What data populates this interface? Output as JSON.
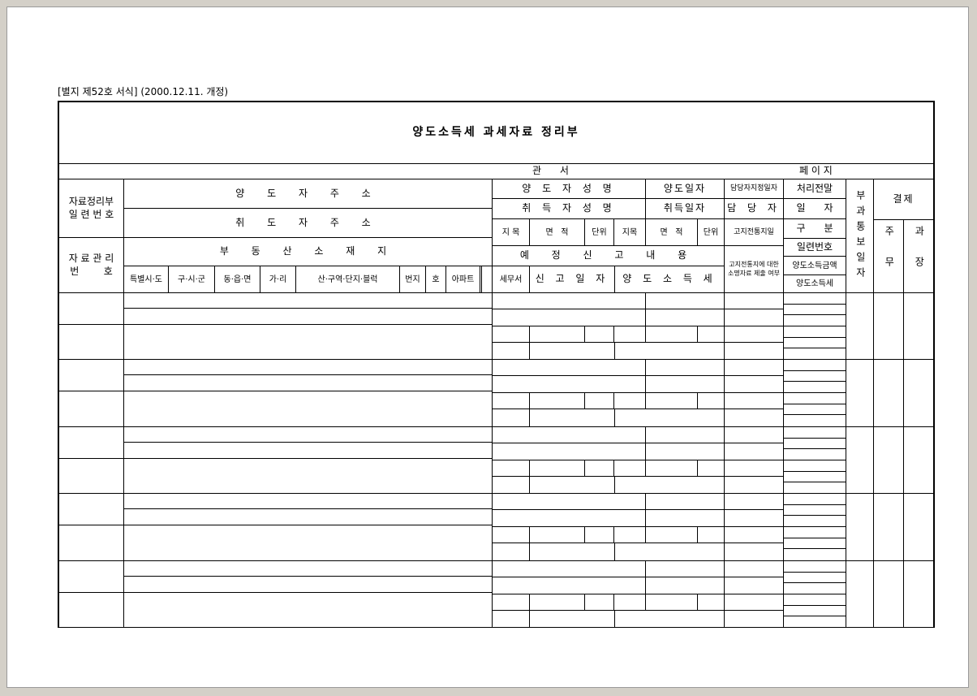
{
  "form_number": "[별지 제52호 서식] (2000.12.11. 개정)",
  "title": "양도소득세 과세자료 정리부",
  "office_row": {
    "office_label": "관      서",
    "page_label": "페 이 지"
  },
  "header": {
    "serial_label": "자료정리부\n일 련 번 호",
    "mgmt_label": "자 료 관 리\n번        호",
    "addr_transferor": "양 도 자 주 소",
    "addr_acquirer": "취 도 자 주 소",
    "addr_realestate": "부 동 산 소 재 지",
    "subcols": [
      "특별시·도",
      "구·시·군",
      "동·읍·면",
      "가·리",
      "산·구역·단지·블럭",
      "번지",
      "호",
      "아파트"
    ],
    "name_transferor": "양 도 자 성 명",
    "transfer_date": "양도일자",
    "manager_date": "담당자지정일자",
    "name_acquirer": "취 득 자 성 명",
    "acquire_date": "취득일자",
    "manager": "담 당 자",
    "cat1": "지 목",
    "area1": "면   적",
    "unit1": "단위",
    "cat2": "지목",
    "area2": "면   적",
    "unit2": "단위",
    "notice_date": "고지전통지일",
    "prelim_title": "예 정 신 고 내 용",
    "prelim_note": "고지전통지에 대한\n소명자료 제출 여부",
    "tax_office": "세무서",
    "report_date": "신 고 일 자",
    "capital_gains_tax": "양 도 소 득 세"
  },
  "process": {
    "r0": "처리전말",
    "r1": "일      자",
    "r2": "구      분",
    "r3": "일련번호",
    "r4": "양도소득금액",
    "r5": "양도소득세"
  },
  "notify_label": "부과통보일자",
  "approval": {
    "title": "결제",
    "staff": "주무",
    "manager": "과장"
  }
}
